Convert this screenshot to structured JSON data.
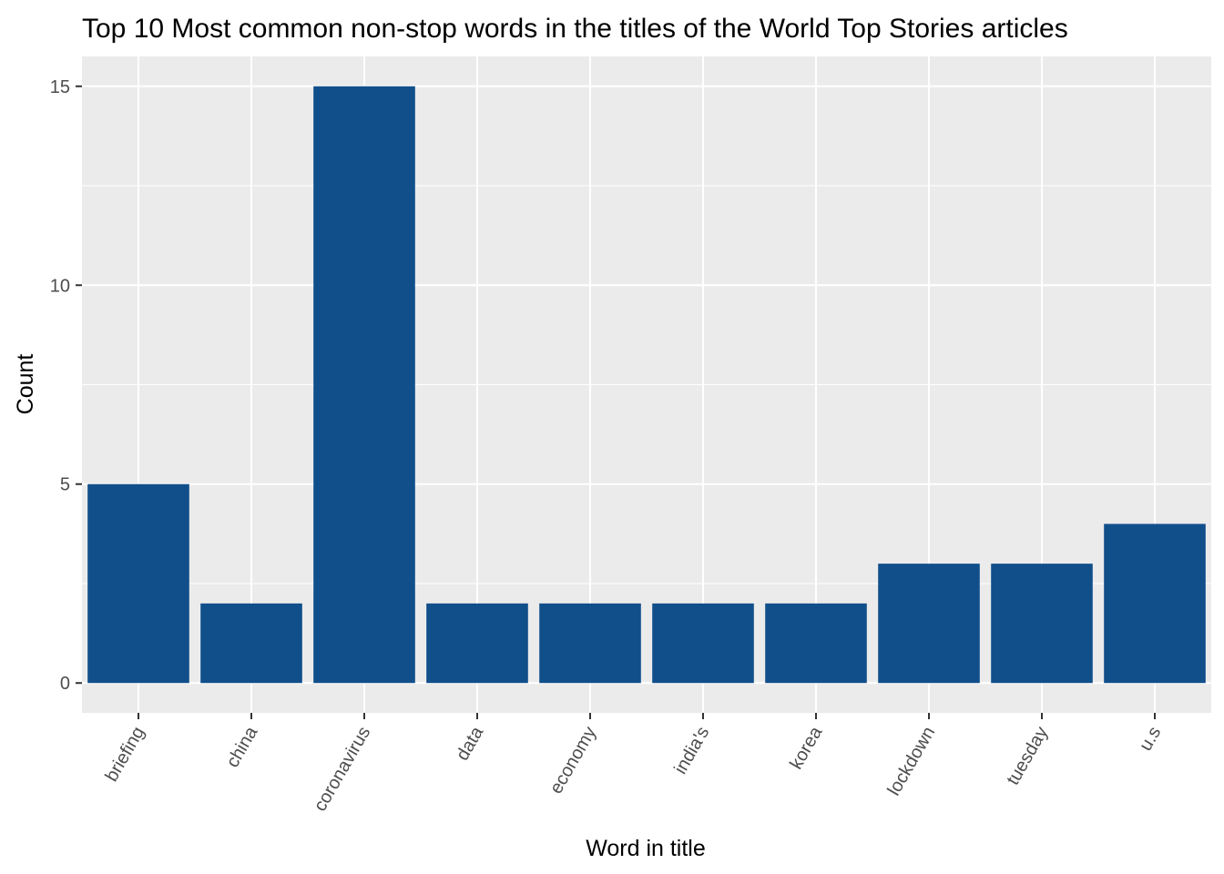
{
  "chart_data": {
    "type": "bar",
    "title": "Top 10 Most common non-stop words in the titles of the World Top Stories articles",
    "xlabel": "Word in title",
    "ylabel": "Count",
    "categories": [
      "briefing",
      "china",
      "coronavirus",
      "data",
      "economy",
      "india's",
      "korea",
      "lockdown",
      "tuesday",
      "u.s"
    ],
    "values": [
      5,
      2,
      15,
      2,
      2,
      2,
      2,
      3,
      3,
      4
    ],
    "ylim": [
      -0.75,
      15.75
    ],
    "yticks": [
      0,
      5,
      10,
      15
    ],
    "ytick_labels": [
      "0",
      "5",
      "10",
      "15"
    ],
    "grid": true,
    "legend": "none",
    "colors": {
      "bar": "#114f8b",
      "panel_background": "#ebebeb",
      "grid": "#ffffff",
      "tick": "#333333",
      "tick_label": "#4d4d4d"
    }
  }
}
